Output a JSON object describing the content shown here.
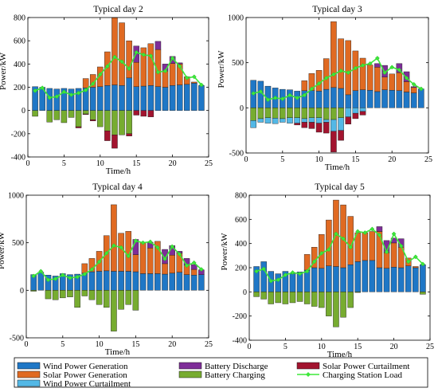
{
  "chart_data": [
    {
      "type": "bar",
      "title": "Typical day 2",
      "xlabel": "Time/h",
      "ylabel": "Power/kW",
      "xlim": [
        0,
        25
      ],
      "ylim": [
        -400,
        800
      ],
      "xticks": [
        0,
        5,
        10,
        15,
        20,
        25
      ],
      "yticks": [
        -400,
        -200,
        0,
        200,
        400,
        600,
        800
      ],
      "x": [
        1,
        2,
        3,
        4,
        5,
        6,
        7,
        8,
        9,
        10,
        11,
        12,
        13,
        14,
        15,
        16,
        17,
        18,
        19,
        20,
        21,
        22,
        23,
        24
      ],
      "series": [
        {
          "name": "Wind Power Generation",
          "values": [
            205,
            200,
            190,
            185,
            190,
            185,
            190,
            195,
            200,
            205,
            215,
            220,
            215,
            280,
            205,
            210,
            215,
            205,
            200,
            215,
            220,
            225,
            235,
            215
          ]
        },
        {
          "name": "Solar Power Generation",
          "values": [
            0,
            0,
            0,
            0,
            0,
            0,
            0,
            80,
            110,
            170,
            290,
            580,
            540,
            320,
            210,
            330,
            360,
            320,
            140,
            190,
            180,
            65,
            10,
            0
          ]
        },
        {
          "name": "Battery Discharge",
          "values": [
            0,
            0,
            0,
            0,
            0,
            0,
            0,
            0,
            0,
            0,
            0,
            0,
            0,
            0,
            140,
            0,
            0,
            70,
            60,
            60,
            10,
            0,
            0,
            0
          ]
        },
        {
          "name": "Battery Charging",
          "values": [
            -50,
            0,
            -100,
            -80,
            -105,
            -60,
            -140,
            -30,
            -80,
            -140,
            -175,
            -210,
            -210,
            -200,
            0,
            0,
            0,
            0,
            0,
            0,
            0,
            0,
            0,
            0
          ]
        },
        {
          "name": "Solar Power Curtailment",
          "values": [
            0,
            0,
            0,
            0,
            0,
            0,
            -10,
            -5,
            -10,
            0,
            -85,
            -115,
            0,
            -20,
            -40,
            -50,
            -55,
            0,
            0,
            0,
            0,
            0,
            0,
            0
          ]
        },
        {
          "name": "Charging Station Load",
          "values": [
            170,
            195,
            110,
            120,
            160,
            135,
            150,
            175,
            230,
            310,
            380,
            460,
            420,
            360,
            500,
            480,
            470,
            330,
            340,
            450,
            380,
            280,
            290,
            220
          ]
        }
      ]
    },
    {
      "type": "bar",
      "title": "Typical day 3",
      "xlabel": "Time/h",
      "ylabel": "Power/kW",
      "xlim": [
        0,
        25
      ],
      "ylim": [
        -500,
        1000
      ],
      "xticks": [
        0,
        5,
        10,
        15,
        20,
        25
      ],
      "yticks": [
        -500,
        0,
        500,
        1000
      ],
      "x": [
        1,
        2,
        3,
        4,
        5,
        6,
        7,
        8,
        9,
        10,
        11,
        12,
        13,
        14,
        15,
        16,
        17,
        18,
        19,
        20,
        21,
        22,
        23,
        24
      ],
      "series": [
        {
          "name": "Wind Power Generation",
          "values": [
            305,
            295,
            240,
            220,
            205,
            200,
            185,
            190,
            190,
            185,
            205,
            225,
            215,
            145,
            190,
            200,
            195,
            180,
            200,
            195,
            190,
            175,
            165,
            210
          ]
        },
        {
          "name": "Solar Power Generation",
          "values": [
            0,
            0,
            0,
            0,
            0,
            0,
            0,
            110,
            190,
            230,
            340,
            730,
            550,
            600,
            440,
            350,
            280,
            270,
            140,
            180,
            200,
            115,
            60,
            0
          ]
        },
        {
          "name": "Battery Discharge",
          "values": [
            0,
            0,
            0,
            0,
            0,
            0,
            0,
            0,
            0,
            0,
            0,
            0,
            0,
            0,
            0,
            0,
            0,
            40,
            130,
            0,
            100,
            110,
            10,
            0
          ]
        },
        {
          "name": "Battery Charging",
          "values": [
            -140,
            -120,
            -110,
            -115,
            -120,
            -110,
            -110,
            -120,
            -110,
            -110,
            -130,
            -130,
            -110,
            0,
            0,
            0,
            0,
            0,
            0,
            0,
            0,
            0,
            0,
            0
          ]
        },
        {
          "name": "Wind Power Curtailment",
          "values": [
            -80,
            -40,
            -60,
            -60,
            -40,
            -60,
            -60,
            -40,
            -50,
            -60,
            -30,
            -130,
            -140,
            -100,
            -60,
            -40,
            0,
            0,
            0,
            0,
            0,
            0,
            0,
            0
          ]
        },
        {
          "name": "Solar Power Curtailment",
          "values": [
            0,
            0,
            0,
            0,
            0,
            0,
            -20,
            -60,
            -70,
            -100,
            -120,
            -230,
            -110,
            -80,
            -60,
            -40,
            0,
            0,
            0,
            0,
            0,
            0,
            0,
            0
          ]
        },
        {
          "name": "Charging Station Load",
          "values": [
            160,
            180,
            90,
            110,
            100,
            140,
            110,
            140,
            210,
            270,
            330,
            370,
            410,
            390,
            440,
            470,
            490,
            550,
            390,
            450,
            420,
            330,
            260,
            210
          ]
        }
      ]
    },
    {
      "type": "bar",
      "title": "Typical day 4",
      "xlabel": "Time/h",
      "ylabel": "Power/kW",
      "xlim": [
        0,
        25
      ],
      "ylim": [
        -500,
        1000
      ],
      "xticks": [
        0,
        5,
        10,
        15,
        20,
        25
      ],
      "yticks": [
        -500,
        0,
        500,
        1000
      ],
      "x": [
        1,
        2,
        3,
        4,
        5,
        6,
        7,
        8,
        9,
        10,
        11,
        12,
        13,
        14,
        15,
        16,
        17,
        18,
        19,
        20,
        21,
        22,
        23,
        24
      ],
      "series": [
        {
          "name": "Wind Power Generation",
          "values": [
            165,
            190,
            160,
            150,
            175,
            165,
            170,
            180,
            195,
            200,
            205,
            200,
            200,
            200,
            195,
            175,
            175,
            175,
            170,
            180,
            190,
            165,
            160,
            165
          ]
        },
        {
          "name": "Solar Power Generation",
          "values": [
            0,
            0,
            0,
            0,
            0,
            0,
            0,
            100,
            140,
            210,
            370,
            700,
            400,
            420,
            180,
            330,
            270,
            340,
            110,
            190,
            200,
            100,
            60,
            0
          ]
        },
        {
          "name": "Battery Discharge",
          "values": [
            0,
            0,
            0,
            0,
            0,
            0,
            0,
            0,
            0,
            0,
            0,
            0,
            0,
            0,
            160,
            0,
            60,
            0,
            150,
            100,
            20,
            70,
            50,
            50
          ]
        },
        {
          "name": "Battery Charging",
          "values": [
            -10,
            0,
            -90,
            -100,
            -80,
            -70,
            -180,
            -60,
            -100,
            -150,
            -180,
            -430,
            -200,
            -150,
            -210,
            0,
            0,
            0,
            0,
            0,
            0,
            0,
            0,
            0
          ]
        },
        {
          "name": "Charging Station Load",
          "values": [
            150,
            200,
            110,
            120,
            160,
            130,
            140,
            170,
            220,
            300,
            390,
            470,
            450,
            360,
            520,
            500,
            510,
            450,
            330,
            460,
            380,
            260,
            290,
            220
          ]
        }
      ]
    },
    {
      "type": "bar",
      "title": "Typical day 5",
      "xlabel": "Time/h",
      "ylabel": "Power/kW",
      "xlim": [
        0,
        25
      ],
      "ylim": [
        -400,
        800
      ],
      "xticks": [
        0,
        5,
        10,
        15,
        20,
        25
      ],
      "yticks": [
        -400,
        -200,
        0,
        200,
        400,
        600,
        800
      ],
      "x": [
        1,
        2,
        3,
        4,
        5,
        6,
        7,
        8,
        9,
        10,
        11,
        12,
        13,
        14,
        15,
        16,
        17,
        18,
        19,
        20,
        21,
        22,
        23,
        24
      ],
      "series": [
        {
          "name": "Wind Power Generation",
          "values": [
            210,
            250,
            170,
            150,
            170,
            150,
            165,
            180,
            200,
            195,
            215,
            210,
            200,
            225,
            250,
            260,
            260,
            200,
            195,
            205,
            200,
            215,
            200,
            225
          ]
        },
        {
          "name": "Solar Power Generation",
          "values": [
            0,
            0,
            0,
            0,
            0,
            0,
            0,
            130,
            170,
            280,
            380,
            550,
            520,
            400,
            240,
            230,
            240,
            300,
            130,
            200,
            170,
            65,
            10,
            0
          ]
        },
        {
          "name": "Battery Discharge",
          "values": [
            0,
            0,
            0,
            0,
            0,
            0,
            0,
            0,
            0,
            0,
            0,
            0,
            0,
            0,
            0,
            0,
            0,
            40,
            100,
            40,
            70,
            0,
            0,
            0
          ]
        },
        {
          "name": "Battery Charging",
          "values": [
            -40,
            -60,
            -100,
            -90,
            -100,
            -90,
            -80,
            -100,
            -120,
            -130,
            -200,
            -290,
            -210,
            -130,
            -5,
            0,
            0,
            0,
            0,
            0,
            0,
            0,
            0,
            -20
          ]
        },
        {
          "name": "Charging Station Load",
          "values": [
            170,
            190,
            90,
            100,
            140,
            160,
            150,
            170,
            250,
            320,
            350,
            480,
            440,
            370,
            500,
            490,
            520,
            470,
            330,
            480,
            380,
            250,
            290,
            230
          ]
        }
      ]
    }
  ],
  "legend": [
    {
      "label": "Wind Power Generation",
      "color": "#1F77C6",
      "kind": "box"
    },
    {
      "label": "Solar Power Generation",
      "color": "#E06A22",
      "kind": "box"
    },
    {
      "label": "Wind Power Curtailment",
      "color": "#53B8E6",
      "kind": "box"
    },
    {
      "label": "Battery Discharge",
      "color": "#7E2D98",
      "kind": "box"
    },
    {
      "label": "Battery Charging",
      "color": "#77AC30",
      "kind": "box"
    },
    {
      "label": "Solar Power Curtailment",
      "color": "#A2142F",
      "kind": "box"
    },
    {
      "label": "Charging Station Load",
      "color": "#3DE83A",
      "kind": "line"
    }
  ],
  "colors": {
    "Wind Power Generation": "#1F77C6",
    "Solar Power Generation": "#E06A22",
    "Battery Discharge": "#7E2D98",
    "Battery Charging": "#77AC30",
    "Wind Power Curtailment": "#53B8E6",
    "Solar Power Curtailment": "#A2142F",
    "Charging Station Load": "#3DE83A"
  }
}
